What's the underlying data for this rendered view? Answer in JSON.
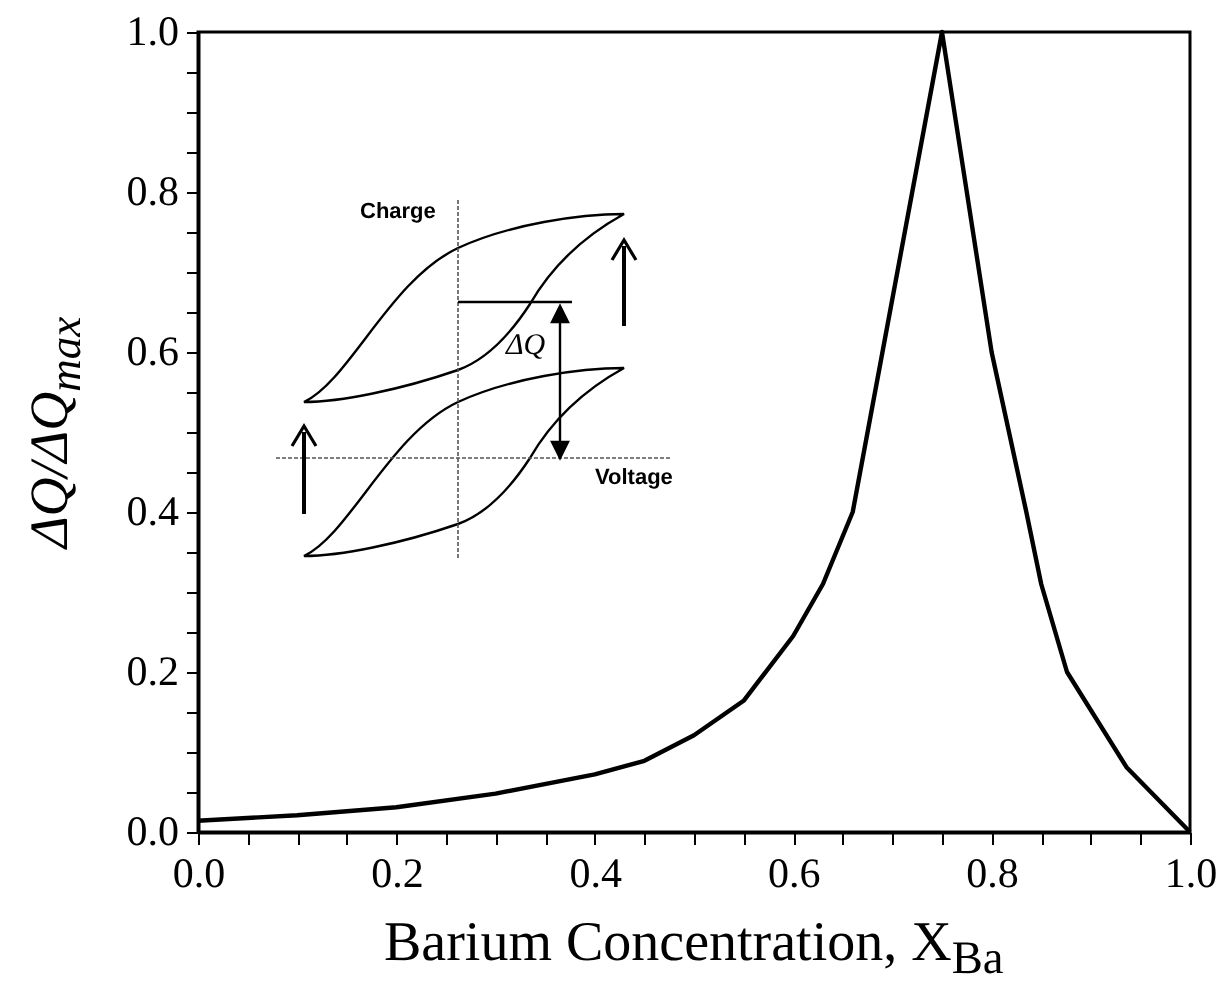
{
  "chart_data": {
    "type": "line",
    "xlabel": "Barium Concentration, X$_{Ba}$",
    "ylabel": "ΔQ/ΔQ$_{max}$",
    "x": [
      0,
      0.1,
      0.2,
      0.3,
      0.4,
      0.45,
      0.5,
      0.55,
      0.6,
      0.63,
      0.66,
      0.69,
      0.72,
      0.75,
      0.775,
      0.8,
      0.835,
      0.85,
      0.876,
      0.936,
      1.0
    ],
    "values": [
      0.014,
      0.021,
      0.031,
      0.048,
      0.072,
      0.089,
      0.121,
      0.164,
      0.245,
      0.31,
      0.4,
      0.6,
      0.8,
      1.0,
      0.8,
      0.6,
      0.4,
      0.31,
      0.2,
      0.081,
      0.0
    ],
    "color": "#000000",
    "line_style": "solid",
    "marker": "none",
    "xlim": [
      0,
      1
    ],
    "ylim": [
      0,
      1
    ],
    "xticks": [
      {
        "value": 0,
        "label": "0.0"
      },
      {
        "value": 0.05,
        "label": null
      },
      {
        "value": 0.1,
        "label": null
      },
      {
        "value": 0.15,
        "label": null
      },
      0.2,
      {
        "value": 0.25,
        "label": null
      },
      {
        "value": 0.3,
        "label": null
      },
      {
        "value": 0.35,
        "label": null
      },
      0.4,
      {
        "value": 0.45,
        "label": null
      },
      {
        "value": 0.5,
        "label": null
      },
      {
        "value": 0.55,
        "label": null
      },
      0.6,
      {
        "value": 0.65,
        "label": null
      },
      {
        "value": 0.7,
        "label": null
      },
      {
        "value": 0.75,
        "label": null
      },
      0.8,
      {
        "value": 0.85,
        "label": null
      },
      {
        "value": 0.9,
        "label": null
      },
      {
        "value": 0.95,
        "label": null
      },
      {
        "value": 1,
        "label": "1.0"
      }
    ],
    "yticks": [
      {
        "value": 0,
        "label": "0.0"
      },
      {
        "value": 0.05,
        "label": null
      },
      {
        "value": 0.1,
        "label": null
      },
      {
        "value": 0.15,
        "label": null
      },
      0.2,
      {
        "value": 0.25,
        "label": null
      },
      {
        "value": 0.3,
        "label": null
      },
      {
        "value": 0.35,
        "label": null
      },
      0.4,
      {
        "value": 0.45,
        "label": null
      },
      {
        "value": 0.5,
        "label": null
      },
      {
        "value": 0.55,
        "label": null
      },
      0.6,
      {
        "value": 0.65,
        "label": null
      },
      {
        "value": 0.7,
        "label": null
      },
      {
        "value": 0.75,
        "label": null
      },
      0.8,
      {
        "value": 0.85,
        "label": null
      },
      {
        "value": 0.9,
        "label": null
      },
      {
        "value": 0.95,
        "label": null
      },
      {
        "value": 1,
        "label": "1.0"
      }
    ],
    "annotations": [
      "Charge",
      "Voltage",
      "ΔQ"
    ]
  }
}
